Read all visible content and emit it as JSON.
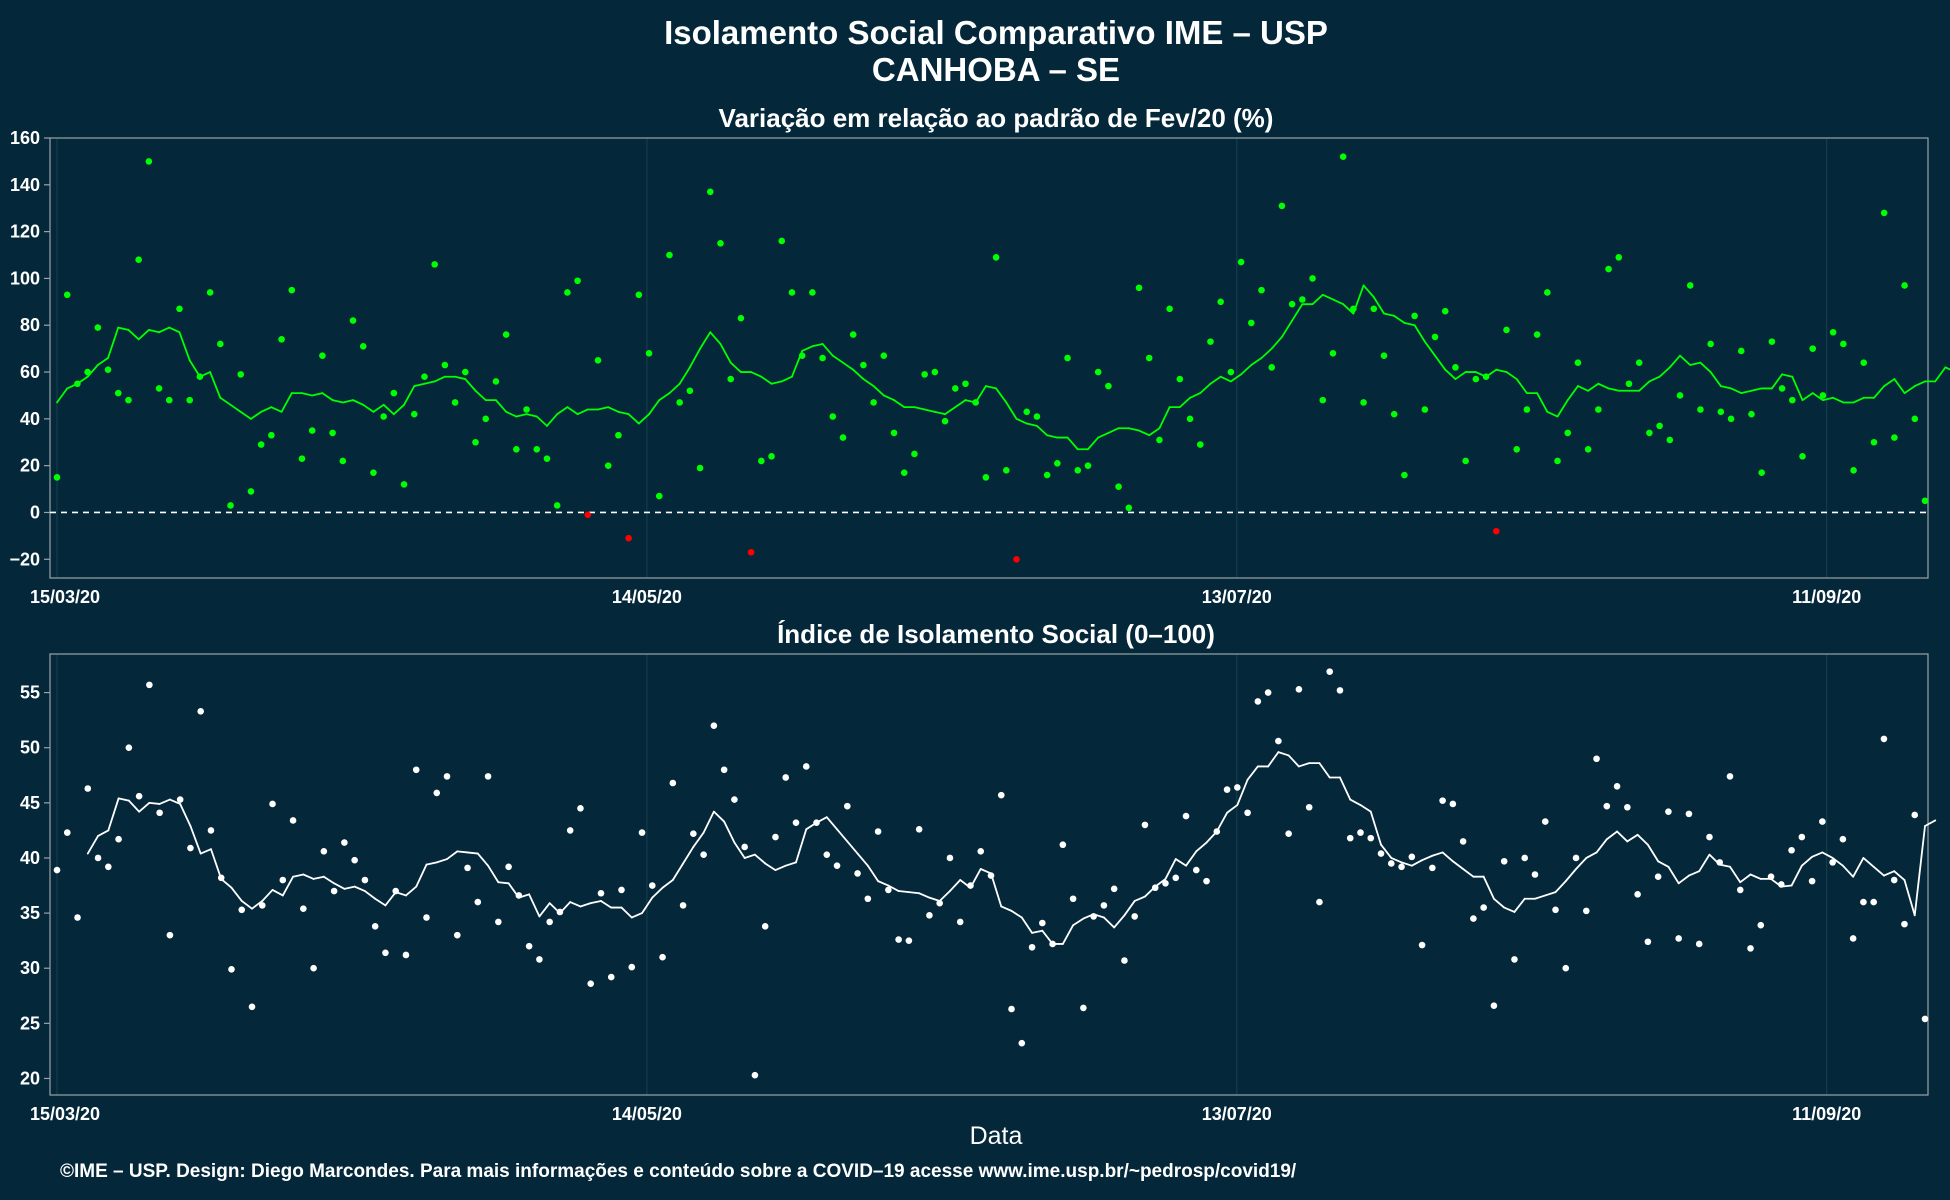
{
  "title_line1": "Isolamento Social Comparativo IME – USP",
  "title_line2": "CANHOBA – SE",
  "xlabel": "Data",
  "footer": "©IME – USP. Design: Diego Marcondes. Para mais informações e conteúdo sobre a COVID–19 acesse www.ime.usp.br/~pedrosp/covid19/",
  "colors": {
    "background": "#04283a",
    "variation_positive": "#00ff00",
    "variation_negative": "#ff0000",
    "index": "#ffffff",
    "zero_line": "#ffffff"
  },
  "chart_data": [
    {
      "type": "scatter",
      "title": "Variação em relação ao padrão de Fev/20 (%)",
      "x_start": "15/03/20",
      "x_end": "21/09/20",
      "x_tick_labels": [
        "15/03/20",
        "14/05/20",
        "13/07/20",
        "11/09/20"
      ],
      "y_ticks": [
        -20,
        0,
        20,
        40,
        60,
        80,
        100,
        120,
        140,
        160
      ],
      "ylim": [
        -28,
        160
      ],
      "reference_line": 0,
      "series": [
        {
          "kind": "points",
          "y": [
            15,
            93,
            55,
            60,
            79,
            61,
            51,
            48,
            108,
            150,
            53,
            48,
            87,
            48,
            58,
            94,
            72,
            3,
            59,
            9,
            29,
            33,
            74,
            95,
            23,
            35,
            67,
            34,
            22,
            82,
            71,
            17,
            41,
            51,
            12,
            42,
            58,
            106,
            63,
            47,
            60,
            30,
            40,
            56,
            76,
            27,
            44,
            27,
            23,
            3,
            94,
            99,
            -1,
            65,
            20,
            33,
            -11,
            93,
            68,
            7,
            110,
            47,
            52,
            19,
            137,
            115,
            57,
            83,
            -17,
            22,
            24,
            116,
            94,
            67,
            94,
            66,
            41,
            32,
            76,
            63,
            47,
            67,
            34,
            17,
            25,
            59,
            60,
            39,
            53,
            55,
            47,
            15,
            109,
            18,
            -20,
            43,
            41,
            16,
            21,
            66,
            18,
            20,
            60,
            54,
            11,
            2,
            96,
            66,
            31,
            87,
            57,
            40,
            29,
            73,
            90,
            60,
            107,
            81,
            95,
            62,
            131,
            89,
            91,
            100,
            48,
            68,
            152,
            87,
            47,
            87,
            67,
            42,
            16,
            84,
            44,
            75,
            86,
            62,
            22,
            57,
            58,
            -8,
            78,
            27,
            44,
            76,
            94,
            22,
            34,
            64,
            27,
            44,
            104,
            109,
            55,
            64,
            34,
            37,
            31,
            50,
            97,
            44,
            72,
            43,
            40,
            69,
            42,
            17,
            73,
            53,
            48,
            24,
            70,
            50,
            77,
            72,
            18,
            64,
            30,
            128,
            32,
            97,
            40,
            5
          ]
        },
        {
          "kind": "moving_average",
          "y": [
            47,
            53,
            55,
            58,
            63,
            66,
            79,
            78,
            74,
            78,
            77,
            79,
            77,
            65,
            58,
            60,
            49,
            46,
            43,
            40,
            43,
            45,
            43,
            51,
            51,
            50,
            51,
            48,
            47,
            48,
            46,
            43,
            46,
            42,
            46,
            54,
            55,
            56,
            58,
            58,
            57,
            52,
            48,
            48,
            43,
            41,
            42,
            41,
            37,
            42,
            45,
            42,
            44,
            44,
            45,
            43,
            42,
            38,
            42,
            48,
            51,
            55,
            62,
            70,
            77,
            72,
            64,
            60,
            60,
            58,
            55,
            56,
            58,
            69,
            71,
            72,
            67,
            64,
            61,
            57,
            54,
            50,
            48,
            45,
            45,
            44,
            43,
            42,
            45,
            48,
            47,
            54,
            53,
            47,
            40,
            38,
            37,
            33,
            32,
            32,
            27,
            27,
            32,
            34,
            36,
            36,
            35,
            33,
            36,
            45,
            45,
            49,
            51,
            55,
            58,
            56,
            59,
            63,
            66,
            70,
            75,
            82,
            89,
            89,
            93,
            91,
            89,
            85,
            97,
            92,
            85,
            84,
            81,
            80,
            73,
            67,
            61,
            57,
            60,
            60,
            58,
            61,
            60,
            57,
            51,
            51,
            43,
            41,
            48,
            54,
            52,
            55,
            53,
            52,
            52,
            52,
            56,
            58,
            62,
            67,
            63,
            64,
            60,
            54,
            53,
            51,
            52,
            53,
            53,
            59,
            58,
            48,
            51,
            48,
            49,
            47,
            47,
            49,
            49,
            54,
            57,
            51,
            54,
            56,
            56,
            62,
            60,
            56,
            58,
            57
          ]
        }
      ]
    },
    {
      "type": "scatter",
      "title": "Índice de Isolamento Social (0–100)",
      "x_start": "15/03/20",
      "x_end": "21/09/20",
      "x_tick_labels": [
        "15/03/20",
        "14/05/20",
        "13/07/20",
        "11/09/20"
      ],
      "y_ticks": [
        20,
        25,
        30,
        35,
        40,
        45,
        50,
        55
      ],
      "ylim": [
        18.5,
        58.5
      ],
      "series": [
        {
          "kind": "points",
          "y": [
            38.9,
            42.3,
            34.6,
            46.3,
            40.0,
            39.2,
            41.7,
            50.0,
            45.6,
            55.7,
            44.1,
            33.0,
            45.3,
            40.9,
            53.3,
            42.5,
            38.2,
            29.9,
            35.3,
            26.5,
            35.7,
            44.9,
            38.0,
            43.4,
            35.4,
            30.0,
            40.6,
            37.0,
            41.4,
            39.8,
            38.0,
            33.8,
            31.4,
            37.0,
            31.2,
            48.0,
            34.6,
            45.9,
            47.4,
            33.0,
            39.1,
            36.0,
            47.4,
            34.2,
            39.2,
            36.6,
            32.0,
            30.8,
            34.2,
            35.1,
            42.5,
            44.5,
            28.6,
            36.8,
            29.2,
            37.1,
            30.1,
            42.3,
            37.5,
            31.0,
            46.8,
            35.7,
            42.2,
            40.3,
            52.0,
            48.0,
            45.3,
            41.0,
            20.3,
            33.8,
            41.9,
            47.3,
            43.2,
            48.3,
            43.2,
            40.3,
            39.3,
            44.7,
            38.6,
            36.3,
            42.4,
            37.1,
            32.6,
            32.5,
            42.6,
            34.8,
            35.9,
            40.0,
            34.2,
            37.5,
            40.6,
            38.4,
            45.7,
            26.3,
            23.2,
            31.9,
            34.1,
            32.2,
            41.2,
            36.3,
            26.4,
            34.7,
            35.7,
            37.2,
            30.7,
            34.7,
            43.0,
            37.3,
            37.7,
            38.2,
            43.8,
            38.9,
            37.9,
            42.4,
            46.2,
            46.4,
            44.1,
            54.2,
            55.0,
            50.6,
            42.2,
            55.3,
            44.6,
            36.0,
            56.9,
            55.2,
            41.8,
            42.3,
            41.8,
            40.4,
            39.5,
            39.2,
            40.1,
            32.1,
            39.1,
            45.2,
            44.9,
            41.5,
            34.5,
            35.5,
            26.6,
            39.7,
            30.8,
            40.0,
            38.5,
            43.3,
            35.3,
            30.0,
            40.0,
            35.2,
            49.0,
            44.7,
            46.5,
            44.6,
            36.7,
            32.4,
            38.3,
            44.2,
            32.7,
            44.0,
            32.2,
            41.9,
            39.6,
            47.4,
            37.1,
            31.8,
            33.9,
            38.3,
            37.6,
            40.7,
            41.9,
            37.9,
            43.3,
            39.6,
            41.7,
            32.7,
            36.0,
            36.0,
            50.8,
            38.0,
            34.0,
            43.9,
            25.4
          ]
        },
        {
          "kind": "moving_average",
          "y": [
            null,
            null,
            null,
            40.4,
            42.0,
            42.5,
            45.4,
            45.2,
            44.2,
            45.0,
            44.9,
            45.3,
            44.9,
            42.9,
            40.4,
            40.8,
            38.1,
            37.3,
            36.1,
            35.4,
            36.1,
            37.1,
            36.6,
            38.3,
            38.5,
            38.1,
            38.3,
            37.7,
            37.2,
            37.4,
            37.0,
            36.3,
            35.7,
            36.9,
            36.6,
            37.4,
            39.4,
            39.6,
            39.9,
            40.6,
            40.5,
            40.4,
            39.3,
            37.8,
            37.7,
            36.4,
            36.7,
            34.7,
            35.9,
            35.0,
            36.0,
            35.6,
            35.9,
            36.1,
            35.5,
            35.5,
            34.6,
            35.0,
            36.4,
            37.3,
            38.0,
            39.5,
            41.0,
            42.3,
            44.2,
            43.3,
            41.4,
            40.0,
            40.3,
            39.5,
            38.9,
            39.3,
            39.6,
            42.6,
            43.2,
            43.7,
            42.6,
            41.5,
            40.4,
            39.3,
            37.9,
            37.5,
            37.0,
            36.9,
            36.8,
            36.4,
            36.1,
            37.0,
            38.0,
            37.3,
            39.0,
            38.6,
            35.6,
            35.2,
            34.6,
            33.2,
            33.4,
            32.2,
            32.2,
            33.9,
            34.5,
            34.9,
            34.6,
            33.7,
            34.8,
            36.1,
            36.5,
            37.4,
            38.1,
            39.9,
            39.3,
            40.6,
            41.4,
            42.4,
            44.1,
            44.8,
            47.1,
            48.3,
            48.3,
            49.6,
            49.3,
            48.3,
            48.6,
            48.6,
            47.3,
            47.3,
            45.3,
            44.8,
            44.2,
            41.2,
            40.0,
            39.6,
            39.3,
            39.8,
            40.2,
            40.5,
            39.7,
            39.0,
            38.3,
            38.3,
            36.3,
            35.5,
            35.1,
            36.3,
            36.3,
            36.6,
            36.9,
            37.9,
            39.0,
            40.0,
            40.5,
            41.7,
            42.4,
            41.5,
            42.1,
            41.2,
            39.7,
            39.2,
            37.7,
            38.4,
            38.8,
            40.3,
            39.4,
            39.2,
            37.8,
            38.5,
            38.1,
            38.1,
            37.4,
            37.5,
            39.3,
            40.1,
            40.5,
            40.0,
            39.3,
            38.3,
            40.0,
            39.2,
            38.4,
            38.8,
            38.0,
            34.8,
            42.9,
            43.4
          ]
        }
      ]
    }
  ]
}
